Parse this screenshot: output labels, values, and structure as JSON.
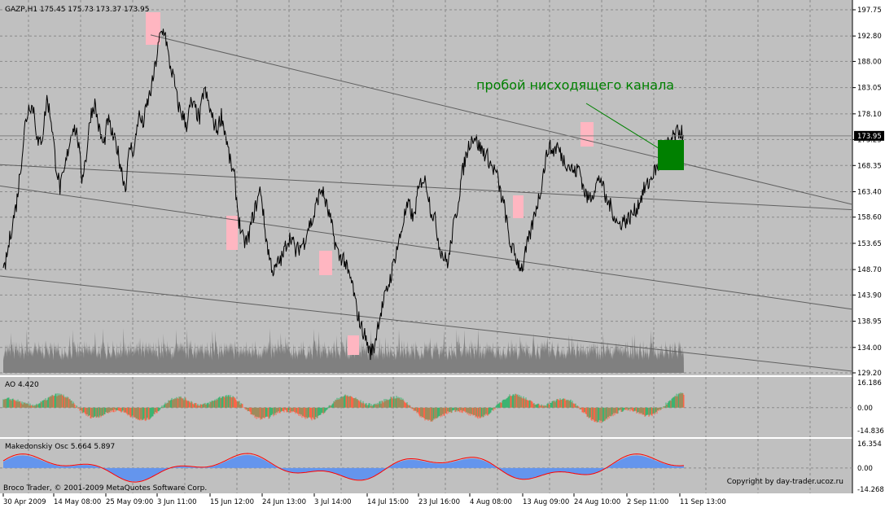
{
  "header": {
    "symbol": "GAZP,H1",
    "ohlc": "175.45 175.73 173.37 173.95"
  },
  "annotation": {
    "text": "пробой нисходящего канала",
    "color": "#008000"
  },
  "colors": {
    "background": "#c0c0c0",
    "price_line": "#000000",
    "volume": "#808080",
    "channel": "#606060",
    "highlight": "#ffb6c1",
    "breakout_box": "#008000",
    "ao_up": "#3cb371",
    "ao_down": "#ff6347",
    "osc_fill": "#6495ed",
    "osc_line": "#ff0000"
  },
  "chart_data": [
    {
      "type": "line",
      "panel": "price",
      "ylim": [
        129.2,
        197.75
      ],
      "y_ticks": [
        "197.75",
        "192.80",
        "188.00",
        "183.05",
        "178.10",
        "173.25",
        "168.35",
        "163.40",
        "158.60",
        "153.65",
        "148.70",
        "143.90",
        "138.95",
        "134.00",
        "129.20"
      ],
      "current_price_label": "173.95",
      "current_price": 173.95,
      "series": [
        {
          "values": [
            147.5,
            152,
            157,
            161,
            168,
            176,
            180,
            179,
            172,
            174,
            181,
            177,
            169,
            164,
            167,
            172,
            176,
            174,
            166,
            170,
            178,
            180,
            175,
            172,
            177,
            174,
            172,
            168,
            164,
            172,
            171,
            178,
            176,
            180,
            183,
            188,
            193,
            194,
            188,
            185,
            180,
            178,
            176,
            180,
            179,
            177,
            183,
            180,
            177,
            175,
            178,
            174,
            169,
            166,
            158,
            154,
            154,
            158,
            161,
            164,
            156,
            151,
            148,
            150,
            151,
            154,
            155,
            152,
            153,
            154,
            157,
            158,
            162,
            164,
            161,
            158,
            154,
            151,
            151,
            148,
            146,
            141,
            138,
            136,
            133,
            134,
            139,
            142,
            145,
            148,
            152,
            155,
            159,
            161,
            158,
            163,
            166,
            165,
            160,
            158,
            153,
            151,
            150,
            156,
            160,
            166,
            170,
            173,
            174,
            172,
            171,
            170,
            168,
            167,
            163,
            160,
            154,
            152,
            150,
            149,
            153,
            156,
            160,
            163,
            168,
            172,
            171,
            172,
            170,
            169,
            168,
            167,
            168,
            164,
            162,
            163,
            165,
            166,
            162,
            161,
            159,
            157,
            158,
            158,
            159,
            160,
            162,
            164,
            165,
            167,
            168,
            170,
            172,
            173,
            174,
            175,
            174
          ]
        }
      ],
      "channel_lines": [
        {
          "from": [
            0,
            168.5
          ],
          "to": [
            1,
            160
          ]
        },
        {
          "from": [
            0,
            164.5
          ],
          "to": [
            1,
            141.2
          ]
        },
        {
          "from": [
            0,
            147.5
          ],
          "to": [
            1,
            129.5
          ]
        }
      ]
    },
    {
      "type": "bar",
      "panel": "ao",
      "title": "AO 4.420",
      "ylim": [
        -14.836,
        16.186
      ],
      "y_ticks": [
        "16.186",
        "0.00",
        "-14.836"
      ]
    },
    {
      "type": "area",
      "panel": "oscillator",
      "title": "Makedonskiy Osc 5.664 5.897",
      "ylim": [
        -14.268,
        16.354
      ],
      "y_ticks": [
        "16.354",
        "0.00",
        "-14.268"
      ]
    }
  ],
  "x_ticks": [
    "30 Apr 2009",
    "14 May 08:00",
    "25 May 09:00",
    "3 Jun 11:00",
    "15 Jun 12:00",
    "24 Jun 13:00",
    "3 Jul 14:00",
    "14 Jul 15:00",
    "23 Jul 16:00",
    "4 Aug 08:00",
    "13 Aug 09:00",
    "24 Aug 10:00",
    "2 Sep 11:00",
    "11 Sep 13:00"
  ],
  "footer": {
    "left": "Broco Trader, © 2001-2009 MetaQuotes Software Corp.",
    "right": "Copyright by day-trader.ucoz.ru"
  }
}
